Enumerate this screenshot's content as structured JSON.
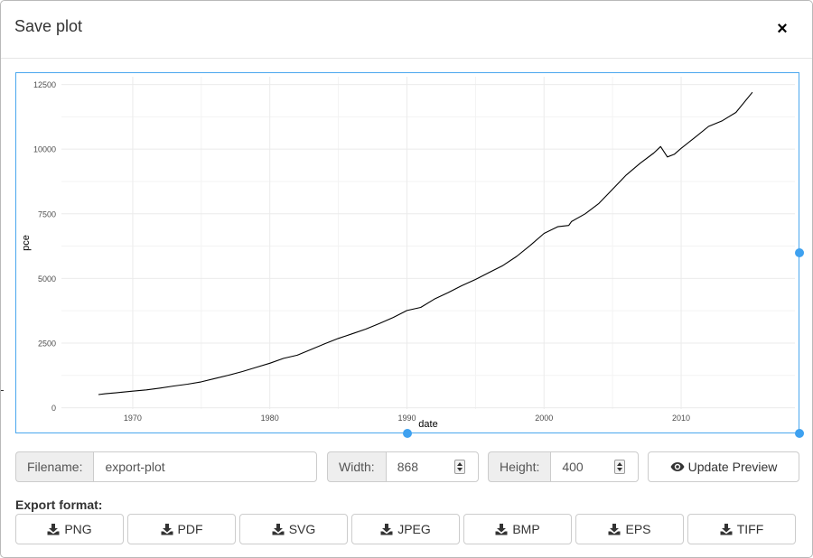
{
  "modal": {
    "title": "Save plot",
    "close_label": "×"
  },
  "fields": {
    "filename_label": "Filename:",
    "filename_value": "export-plot",
    "width_label": "Width:",
    "width_value": "868",
    "height_label": "Height:",
    "height_value": "400"
  },
  "actions": {
    "update_preview_label": "Update Preview",
    "update_preview_icon": "eye-icon"
  },
  "export": {
    "label": "Export format:",
    "formats": [
      "PNG",
      "PDF",
      "SVG",
      "JPEG",
      "BMP",
      "EPS",
      "TIFF"
    ],
    "icon": "download-icon"
  },
  "colors": {
    "accent": "#3ea1f0",
    "frame_border": "#4aa7ee",
    "line": "#000000",
    "grid": "#ebebeb"
  },
  "chart_data": {
    "type": "line",
    "xlabel": "date",
    "ylabel": "pce",
    "x_ticks": [
      1970,
      1980,
      1990,
      2000,
      2010
    ],
    "y_ticks": [
      0,
      2500,
      5000,
      7500,
      10000,
      12500
    ],
    "xlim": [
      1964.8,
      2018.3
    ],
    "ylim": [
      -50,
      12800
    ],
    "grid": true,
    "series": [
      {
        "x": [
          1967.5,
          1968,
          1969,
          1970,
          1971,
          1972,
          1973,
          1974,
          1975,
          1976,
          1977,
          1978,
          1979,
          1980,
          1981,
          1982,
          1983,
          1984,
          1985,
          1986,
          1987,
          1988,
          1989,
          1990,
          1991,
          1992,
          1993,
          1994,
          1995,
          1996,
          1997,
          1998,
          1999,
          2000,
          2001,
          2001.8,
          2002,
          2003,
          2004,
          2005,
          2006,
          2007,
          2008,
          2008.5,
          2009,
          2009.5,
          2010,
          2011,
          2012,
          2013,
          2014,
          2015.2
        ],
        "y": [
          510,
          540,
          590,
          640,
          690,
          760,
          840,
          910,
          1000,
          1130,
          1260,
          1400,
          1560,
          1720,
          1910,
          2030,
          2250,
          2470,
          2680,
          2860,
          3040,
          3260,
          3490,
          3760,
          3880,
          4200,
          4450,
          4720,
          4960,
          5230,
          5500,
          5850,
          6280,
          6740,
          7000,
          7050,
          7200,
          7500,
          7900,
          8450,
          9000,
          9450,
          9850,
          10100,
          9700,
          9800,
          10030,
          10450,
          10880,
          11100,
          11420,
          12200
        ]
      }
    ]
  }
}
